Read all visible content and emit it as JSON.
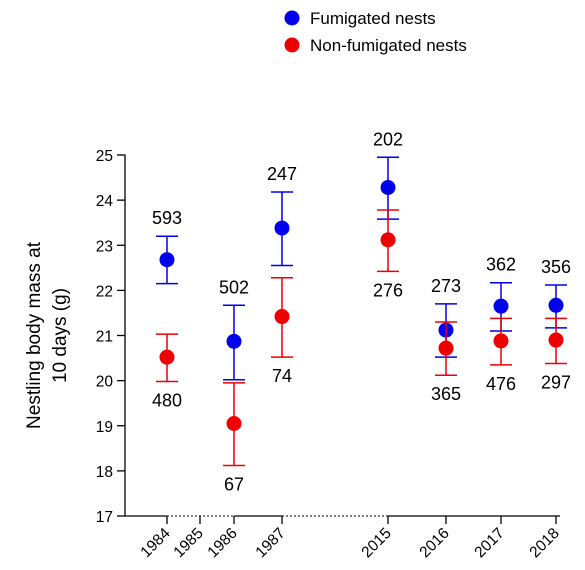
{
  "chart_data": {
    "type": "scatter",
    "title": "",
    "xlabel": "",
    "ylabel": [
      "Nestling body mass at",
      "10 days (g)"
    ],
    "ylim": [
      17,
      25
    ],
    "yticks": [
      17,
      18,
      19,
      20,
      21,
      22,
      23,
      24,
      25
    ],
    "categories": [
      "1984",
      "1985",
      "1986",
      "1987",
      "2015",
      "2016",
      "2017",
      "2018"
    ],
    "error_bars": true,
    "grid": false,
    "legend_position": "top-center",
    "series": [
      {
        "name": "Fumigated nests",
        "color": "#0000ee",
        "points": [
          {
            "year": "1984",
            "y": 22.68,
            "lo": 22.15,
            "hi": 23.2,
            "n": "593"
          },
          {
            "year": "1986",
            "y": 20.87,
            "lo": 20.02,
            "hi": 21.67,
            "n": "502"
          },
          {
            "year": "1987",
            "y": 23.38,
            "lo": 22.55,
            "hi": 24.18,
            "n": "247"
          },
          {
            "year": "2015",
            "y": 24.28,
            "lo": 23.58,
            "hi": 24.95,
            "n": "202"
          },
          {
            "year": "2016",
            "y": 21.12,
            "lo": 20.52,
            "hi": 21.7,
            "n": "273"
          },
          {
            "year": "2017",
            "y": 21.65,
            "lo": 21.1,
            "hi": 22.17,
            "n": "362"
          },
          {
            "year": "2018",
            "y": 21.67,
            "lo": 21.17,
            "hi": 22.12,
            "n": "356"
          }
        ]
      },
      {
        "name": "Non-fumigated nests",
        "color": "#ee0000",
        "points": [
          {
            "year": "1984",
            "y": 20.52,
            "lo": 19.98,
            "hi": 21.03,
            "n": "480"
          },
          {
            "year": "1986",
            "y": 19.05,
            "lo": 18.12,
            "hi": 19.95,
            "n": "67"
          },
          {
            "year": "1987",
            "y": 21.42,
            "lo": 20.52,
            "hi": 22.28,
            "n": "74"
          },
          {
            "year": "2015",
            "y": 23.12,
            "lo": 22.42,
            "hi": 23.78,
            "n": "276"
          },
          {
            "year": "2016",
            "y": 20.72,
            "lo": 20.12,
            "hi": 21.3,
            "n": "365"
          },
          {
            "year": "2017",
            "y": 20.88,
            "lo": 20.35,
            "hi": 21.38,
            "n": "476"
          },
          {
            "year": "2018",
            "y": 20.9,
            "lo": 20.38,
            "hi": 21.38,
            "n": "297"
          }
        ]
      }
    ]
  }
}
